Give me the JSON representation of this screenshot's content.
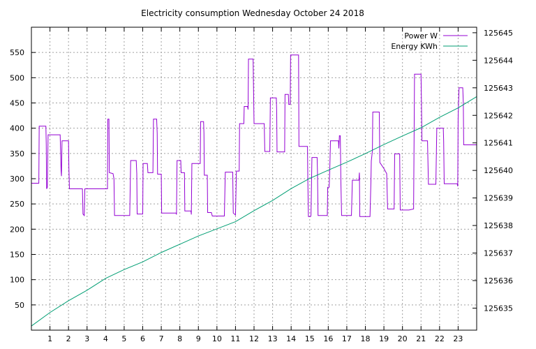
{
  "chart_data": {
    "type": "line",
    "title": "Electricity consumption Wednesday October 24 2018",
    "x_ticks": [
      1,
      2,
      3,
      4,
      5,
      6,
      7,
      8,
      9,
      10,
      11,
      12,
      13,
      14,
      15,
      16,
      17,
      18,
      19,
      20,
      21,
      22,
      23
    ],
    "xlim": [
      0,
      24
    ],
    "ylim": [
      0,
      600
    ],
    "y_ticks": [
      50,
      100,
      150,
      200,
      250,
      300,
      350,
      400,
      450,
      500,
      550
    ],
    "y2lim": [
      125634.2,
      125645.2
    ],
    "y2_ticks": [
      125635,
      125636,
      125637,
      125638,
      125639,
      125640,
      125641,
      125642,
      125643,
      125644,
      125645
    ],
    "grid": true,
    "legend_position": "top-right",
    "series": [
      {
        "name": "Power W",
        "axis": "y1",
        "color": "#9400d3",
        "style": "step",
        "points": [
          [
            0.0,
            291
          ],
          [
            0.4,
            291
          ],
          [
            0.42,
            404
          ],
          [
            0.78,
            404
          ],
          [
            0.8,
            368
          ],
          [
            0.82,
            280
          ],
          [
            0.86,
            283
          ],
          [
            0.9,
            387
          ],
          [
            1.22,
            387
          ],
          [
            1.25,
            387
          ],
          [
            1.55,
            387
          ],
          [
            1.6,
            315
          ],
          [
            1.62,
            305
          ],
          [
            1.65,
            375
          ],
          [
            2.0,
            375
          ],
          [
            2.02,
            322
          ],
          [
            2.05,
            280
          ],
          [
            2.75,
            280
          ],
          [
            2.78,
            230
          ],
          [
            2.85,
            227
          ],
          [
            2.88,
            280
          ],
          [
            4.1,
            280
          ],
          [
            4.12,
            418
          ],
          [
            4.18,
            418
          ],
          [
            4.2,
            312
          ],
          [
            4.4,
            310
          ],
          [
            4.45,
            300
          ],
          [
            4.48,
            227
          ],
          [
            5.3,
            227
          ],
          [
            5.35,
            336
          ],
          [
            5.65,
            336
          ],
          [
            5.68,
            310
          ],
          [
            5.7,
            230
          ],
          [
            6.0,
            230
          ],
          [
            6.02,
            330
          ],
          [
            6.25,
            330
          ],
          [
            6.28,
            312
          ],
          [
            6.55,
            312
          ],
          [
            6.58,
            418
          ],
          [
            6.75,
            418
          ],
          [
            6.78,
            390
          ],
          [
            6.8,
            309
          ],
          [
            7.0,
            309
          ],
          [
            7.02,
            232
          ],
          [
            7.8,
            232
          ],
          [
            7.82,
            229
          ],
          [
            7.85,
            336
          ],
          [
            8.05,
            336
          ],
          [
            8.07,
            312
          ],
          [
            8.25,
            312
          ],
          [
            8.27,
            236
          ],
          [
            8.6,
            236
          ],
          [
            8.62,
            229
          ],
          [
            8.65,
            330
          ],
          [
            9.1,
            330
          ],
          [
            9.12,
            413
          ],
          [
            9.28,
            413
          ],
          [
            9.3,
            390
          ],
          [
            9.32,
            307
          ],
          [
            9.48,
            307
          ],
          [
            9.5,
            233
          ],
          [
            9.7,
            233
          ],
          [
            9.75,
            226
          ],
          [
            10.4,
            226
          ],
          [
            10.45,
            313
          ],
          [
            10.85,
            313
          ],
          [
            10.88,
            232
          ],
          [
            11.0,
            228
          ],
          [
            11.05,
            315
          ],
          [
            11.2,
            315
          ],
          [
            11.22,
            409
          ],
          [
            11.45,
            409
          ],
          [
            11.47,
            443
          ],
          [
            11.65,
            443
          ],
          [
            11.68,
            437
          ],
          [
            11.7,
            537
          ],
          [
            11.95,
            537
          ],
          [
            11.97,
            485
          ],
          [
            12.0,
            409
          ],
          [
            12.55,
            409
          ],
          [
            12.58,
            354
          ],
          [
            12.85,
            354
          ],
          [
            12.88,
            460
          ],
          [
            13.2,
            460
          ],
          [
            13.22,
            435
          ],
          [
            13.24,
            353
          ],
          [
            13.65,
            353
          ],
          [
            13.67,
            467
          ],
          [
            13.85,
            467
          ],
          [
            13.87,
            447
          ],
          [
            13.95,
            447
          ],
          [
            13.97,
            545
          ],
          [
            14.4,
            545
          ],
          [
            14.42,
            364
          ],
          [
            14.88,
            364
          ],
          [
            14.9,
            295
          ],
          [
            14.93,
            225
          ],
          [
            15.05,
            225
          ],
          [
            15.07,
            228
          ],
          [
            15.12,
            342
          ],
          [
            15.4,
            342
          ],
          [
            15.42,
            312
          ],
          [
            15.45,
            227
          ],
          [
            15.95,
            227
          ],
          [
            15.97,
            283
          ],
          [
            16.05,
            283
          ],
          [
            16.08,
            315
          ],
          [
            16.12,
            375
          ],
          [
            16.55,
            375
          ],
          [
            16.57,
            360
          ],
          [
            16.6,
            385
          ],
          [
            16.65,
            385
          ],
          [
            16.68,
            295
          ],
          [
            16.72,
            227
          ],
          [
            17.2,
            227
          ],
          [
            17.25,
            227
          ],
          [
            17.3,
            297
          ],
          [
            17.65,
            297
          ],
          [
            17.68,
            312
          ],
          [
            17.7,
            225
          ],
          [
            18.25,
            225
          ],
          [
            18.3,
            295
          ],
          [
            18.32,
            335
          ],
          [
            18.38,
            355
          ],
          [
            18.4,
            432
          ],
          [
            18.75,
            432
          ],
          [
            18.78,
            332
          ],
          [
            18.82,
            330
          ],
          [
            19.0,
            320
          ],
          [
            19.15,
            310
          ],
          [
            19.2,
            240
          ],
          [
            19.55,
            240
          ],
          [
            19.58,
            349
          ],
          [
            19.85,
            349
          ],
          [
            19.88,
            238
          ],
          [
            20.25,
            238
          ],
          [
            20.35,
            238
          ],
          [
            20.6,
            240
          ],
          [
            20.65,
            507
          ],
          [
            21.0,
            507
          ],
          [
            21.02,
            460
          ],
          [
            21.05,
            375
          ],
          [
            21.2,
            375
          ],
          [
            21.35,
            375
          ],
          [
            21.4,
            289
          ],
          [
            21.8,
            289
          ],
          [
            21.85,
            400
          ],
          [
            22.2,
            400
          ],
          [
            22.22,
            375
          ],
          [
            22.25,
            290
          ],
          [
            22.95,
            290
          ],
          [
            22.98,
            285
          ],
          [
            23.0,
            420
          ],
          [
            23.05,
            480
          ],
          [
            23.25,
            480
          ],
          [
            23.28,
            450
          ],
          [
            23.3,
            367
          ],
          [
            24.0,
            367
          ]
        ]
      },
      {
        "name": "Energy KWh",
        "axis": "y2",
        "color": "#009e73",
        "style": "line",
        "points": [
          [
            0.0,
            125634.35
          ],
          [
            1.0,
            125634.84
          ],
          [
            2.0,
            125635.27
          ],
          [
            3.0,
            125635.65
          ],
          [
            4.0,
            125636.08
          ],
          [
            5.0,
            125636.4
          ],
          [
            6.0,
            125636.68
          ],
          [
            7.0,
            125637.02
          ],
          [
            8.0,
            125637.32
          ],
          [
            9.0,
            125637.62
          ],
          [
            10.0,
            125637.88
          ],
          [
            11.0,
            125638.14
          ],
          [
            12.0,
            125638.54
          ],
          [
            13.0,
            125638.91
          ],
          [
            14.0,
            125639.34
          ],
          [
            15.0,
            125639.71
          ],
          [
            16.0,
            125640.01
          ],
          [
            17.0,
            125640.3
          ],
          [
            18.0,
            125640.61
          ],
          [
            19.0,
            125640.94
          ],
          [
            20.0,
            125641.25
          ],
          [
            21.0,
            125641.55
          ],
          [
            22.0,
            125641.93
          ],
          [
            23.0,
            125642.27
          ],
          [
            24.0,
            125642.68
          ]
        ]
      }
    ]
  }
}
